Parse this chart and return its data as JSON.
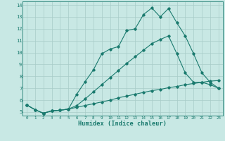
{
  "xlabel": "Humidex (Indice chaleur)",
  "xlim": [
    -0.5,
    23.5
  ],
  "ylim": [
    4.7,
    14.3
  ],
  "xticks": [
    0,
    1,
    2,
    3,
    4,
    5,
    6,
    7,
    8,
    9,
    10,
    11,
    12,
    13,
    14,
    15,
    16,
    17,
    18,
    19,
    20,
    21,
    22,
    23
  ],
  "yticks": [
    5,
    6,
    7,
    8,
    9,
    10,
    11,
    12,
    13,
    14
  ],
  "line_color": "#1a7a6e",
  "bg_color": "#c8e8e4",
  "grid_color": "#a8ccc8",
  "line1_x": [
    0,
    1,
    2,
    3,
    4,
    5,
    6,
    7,
    8,
    9,
    10,
    11,
    12,
    13,
    14,
    15,
    16,
    17,
    18,
    19,
    20,
    21,
    22,
    23
  ],
  "line1_y": [
    5.6,
    5.2,
    4.9,
    5.1,
    5.15,
    5.25,
    6.5,
    7.55,
    8.55,
    9.9,
    10.3,
    10.5,
    11.85,
    12.0,
    13.2,
    13.75,
    13.0,
    13.7,
    12.5,
    11.4,
    9.9,
    8.3,
    7.5,
    7.0
  ],
  "line2_x": [
    0,
    1,
    2,
    3,
    4,
    5,
    6,
    7,
    8,
    9,
    10,
    11,
    12,
    13,
    14,
    15,
    16,
    17,
    18,
    19,
    20,
    21,
    22,
    23
  ],
  "line2_y": [
    5.6,
    5.2,
    4.9,
    5.1,
    5.15,
    5.25,
    5.55,
    6.1,
    6.7,
    7.3,
    7.9,
    8.5,
    9.1,
    9.65,
    10.2,
    10.75,
    11.1,
    11.4,
    9.9,
    8.3,
    7.5,
    7.5,
    7.3,
    7.0
  ],
  "line3_x": [
    0,
    1,
    2,
    3,
    4,
    5,
    6,
    7,
    8,
    9,
    10,
    11,
    12,
    13,
    14,
    15,
    16,
    17,
    18,
    19,
    20,
    21,
    22,
    23
  ],
  "line3_y": [
    5.6,
    5.2,
    4.9,
    5.1,
    5.15,
    5.25,
    5.4,
    5.55,
    5.7,
    5.85,
    6.0,
    6.2,
    6.35,
    6.5,
    6.65,
    6.8,
    6.9,
    7.05,
    7.15,
    7.3,
    7.4,
    7.5,
    7.6,
    7.65
  ]
}
